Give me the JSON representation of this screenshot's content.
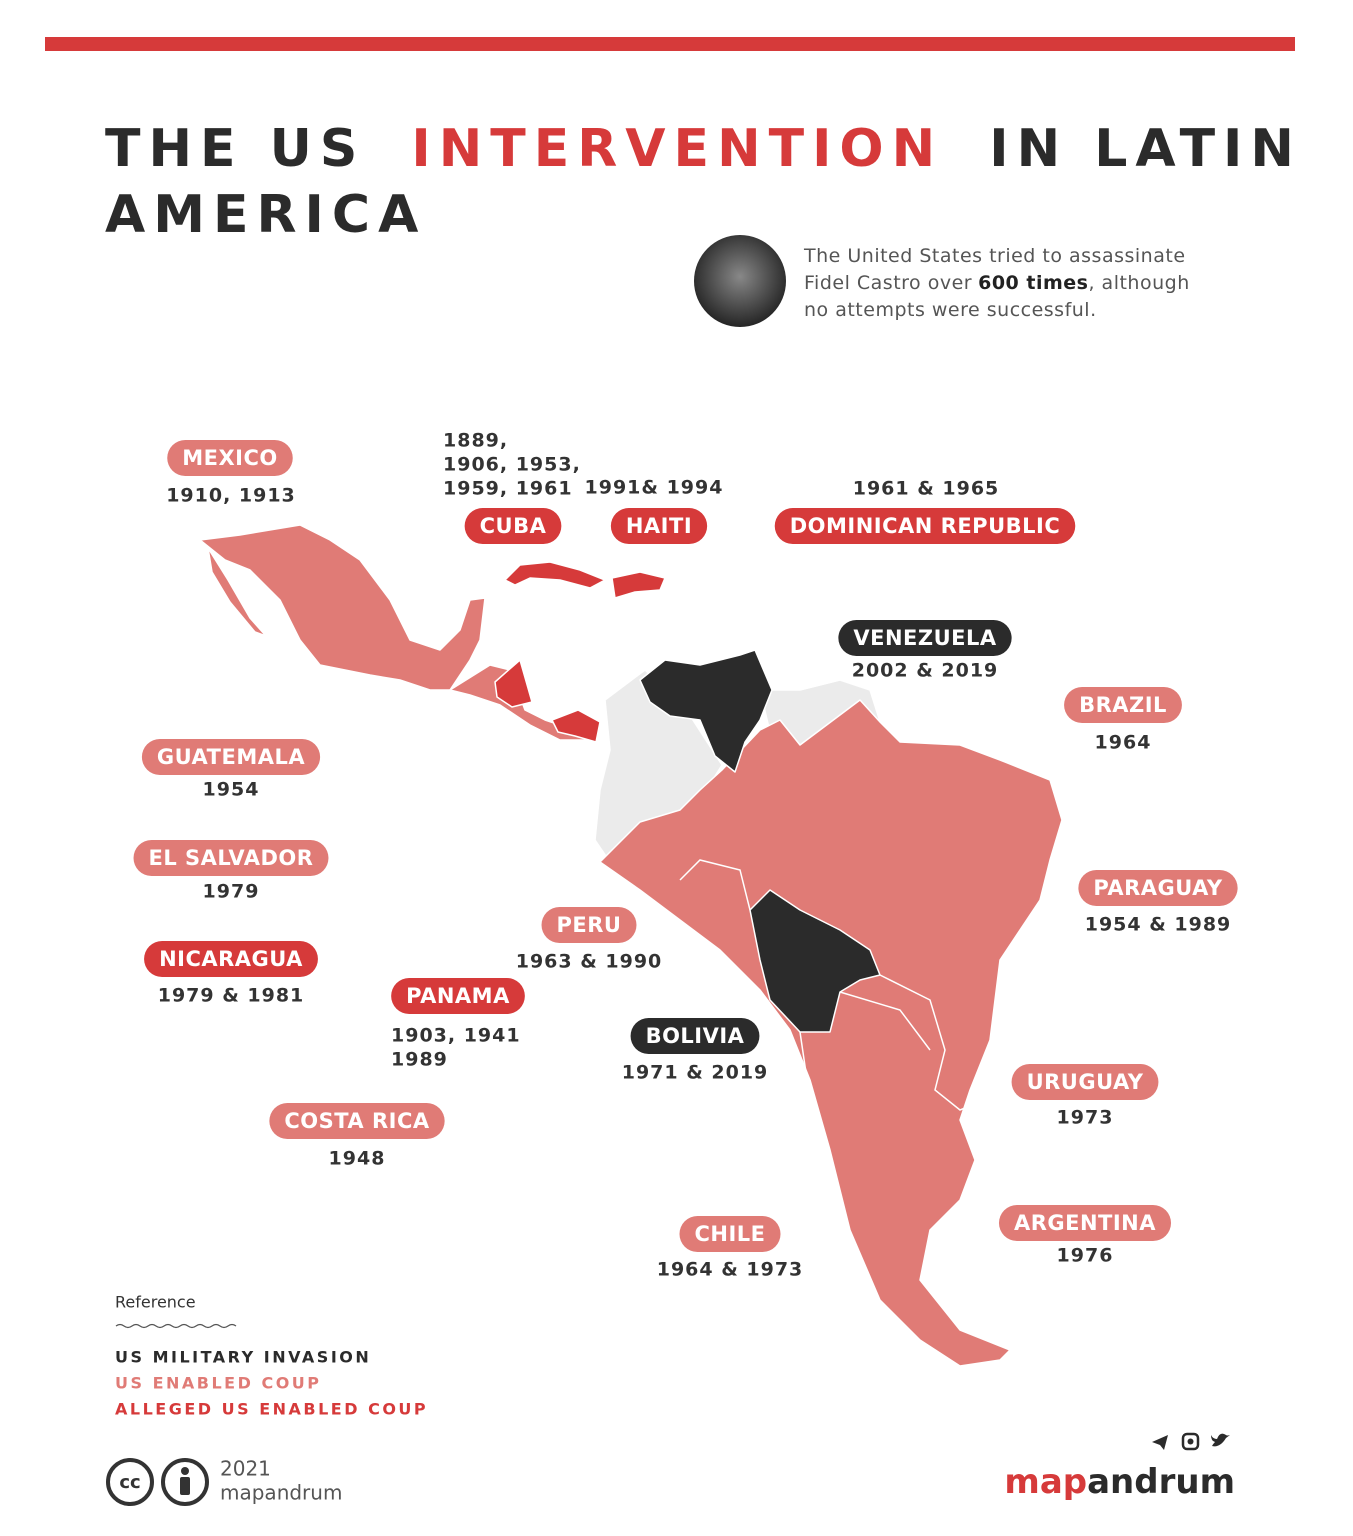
{
  "header": {
    "title": [
      "THE US",
      "INTERVENTION",
      "IN LATIN",
      "AMERICA"
    ],
    "note": [
      [
        "The United States tried to assassinate"
      ],
      [
        "Fidel Castro over",
        "600 times",
        ", although"
      ],
      [
        "no attempts were successful."
      ]
    ]
  },
  "countries": [
    {
      "name": "MEXICO",
      "years": [
        "1910, 1913"
      ],
      "color": "#e07b76"
    },
    {
      "name": "CUBA",
      "years": [
        "1889,",
        "1906, 1953,",
        "1959, 1961"
      ],
      "color": "#d63a3a"
    },
    {
      "name": "HAITI",
      "years": [
        "1991& 1994"
      ],
      "color": "#d63a3a"
    },
    {
      "name": "DOMINICAN REPUBLIC",
      "years": [
        "1961 & 1965"
      ],
      "color": "#d63a3a"
    },
    {
      "name": "VENEZUELA",
      "years": [
        "2002 & 2019"
      ],
      "color": "#2b2b2b"
    },
    {
      "name": "BRAZIL",
      "years": [
        "1964"
      ],
      "color": "#e07b76"
    },
    {
      "name": "GUATEMALA",
      "years": [
        "1954"
      ],
      "color": "#e07b76"
    },
    {
      "name": "EL SALVADOR",
      "years": [
        "1979"
      ],
      "color": "#e07b76"
    },
    {
      "name": "PARAGUAY",
      "years": [
        "1954 & 1989"
      ],
      "color": "#e07b76"
    },
    {
      "name": "PERU",
      "years": [
        "1963 & 1990"
      ],
      "color": "#e07b76"
    },
    {
      "name": "NICARAGUA",
      "years": [
        "1979 & 1981"
      ],
      "color": "#d63a3a"
    },
    {
      "name": "PANAMA",
      "years": [
        "1903, 1941",
        "1989"
      ],
      "color": "#d63a3a"
    },
    {
      "name": "BOLIVIA",
      "years": [
        "1971 & 2019"
      ],
      "color": "#2b2b2b"
    },
    {
      "name": "URUGUAY",
      "years": [
        "1973"
      ],
      "color": "#e07b76"
    },
    {
      "name": "COSTA RICA",
      "years": [
        "1948"
      ],
      "color": "#e07b76"
    },
    {
      "name": "ARGENTINA",
      "years": [
        "1976"
      ],
      "color": "#e07b76"
    },
    {
      "name": "CHILE",
      "years": [
        "1964 & 1973"
      ],
      "color": "#e07b76"
    }
  ],
  "legend": {
    "title": "Reference",
    "items": [
      {
        "name": "US MILITARY INVASION",
        "color": "#2b2b2b"
      },
      {
        "name": "US ENABLED COUP",
        "color": "#e07b76"
      },
      {
        "name": "ALLEGED US ENABLED COUP",
        "color": "#d63a3a"
      }
    ]
  },
  "footer": {
    "license": [
      "cc",
      "2021",
      "mapandrum"
    ],
    "logo": [
      "map",
      "andrum"
    ]
  }
}
